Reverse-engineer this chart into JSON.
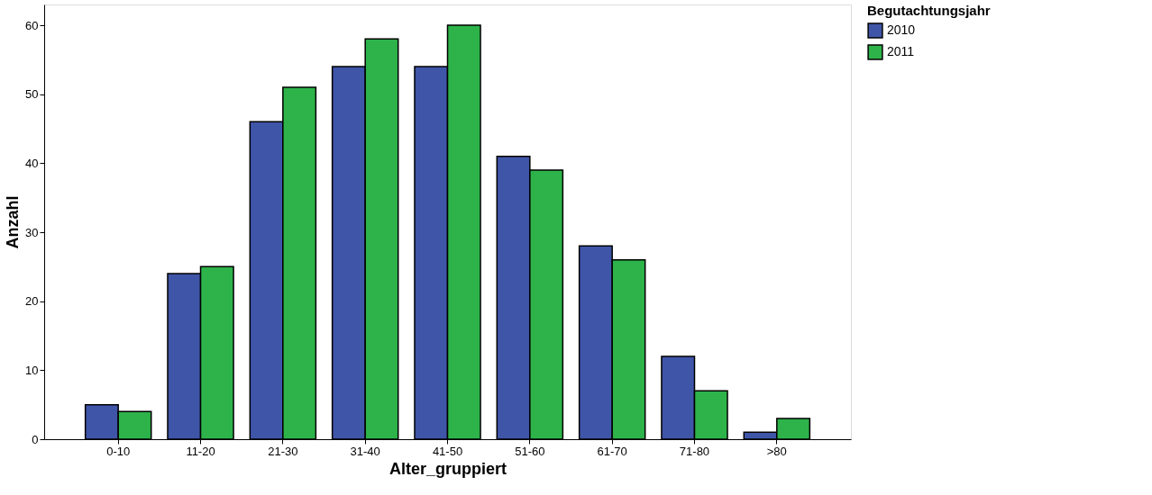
{
  "chart_data": {
    "type": "bar",
    "xlabel": "Alter_gruppiert",
    "ylabel": "Anzahl",
    "legend_title": "Begutachtungsjahr",
    "categories": [
      "0-10",
      "11-20",
      "21-30",
      "31-40",
      "41-50",
      "51-60",
      "61-70",
      "71-80",
      ">80"
    ],
    "series": [
      {
        "name": "2010",
        "color": "#3f55a8",
        "values": [
          5,
          24,
          46,
          54,
          54,
          41,
          28,
          12,
          1
        ]
      },
      {
        "name": "2011",
        "color": "#2db34a",
        "values": [
          4,
          25,
          51,
          58,
          60,
          39,
          26,
          7,
          3
        ]
      }
    ],
    "ylim": [
      0,
      63
    ],
    "yticks": [
      0,
      10,
      20,
      30,
      40,
      50,
      60
    ],
    "grid": false,
    "legend": "top right"
  }
}
